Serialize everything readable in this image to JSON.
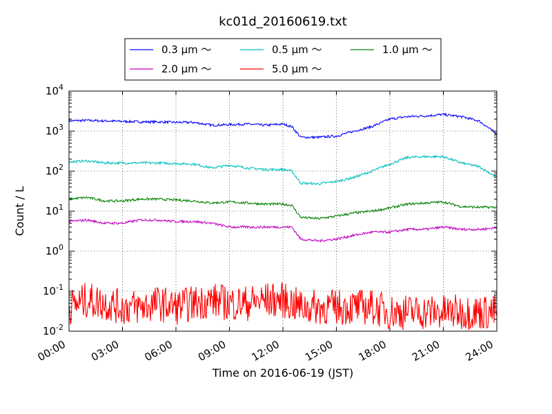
{
  "chart_data": {
    "type": "line",
    "title": "kc01d_20160619.txt",
    "xlabel": "Time on 2016-06-19 (JST)",
    "ylabel": "Count / L",
    "yscale": "log",
    "ylim": [
      0.01,
      10000
    ],
    "xlim": [
      "00:00",
      "24:00"
    ],
    "x_ticks": [
      "00:00",
      "03:00",
      "06:00",
      "09:00",
      "12:00",
      "15:00",
      "18:00",
      "21:00",
      "24:00"
    ],
    "y_ticks": [
      {
        "base": "10",
        "exp": "-2"
      },
      {
        "base": "10",
        "exp": "-1"
      },
      {
        "base": "10",
        "exp": "0"
      },
      {
        "base": "10",
        "exp": "1"
      },
      {
        "base": "10",
        "exp": "2"
      },
      {
        "base": "10",
        "exp": "3"
      },
      {
        "base": "10",
        "exp": "4"
      }
    ],
    "grid": true,
    "legend_position": "top-center",
    "x": [
      "00:00",
      "01:00",
      "02:00",
      "03:00",
      "04:00",
      "05:00",
      "06:00",
      "07:00",
      "08:00",
      "09:00",
      "10:00",
      "11:00",
      "12:00",
      "12:30",
      "13:00",
      "14:00",
      "15:00",
      "16:00",
      "17:00",
      "18:00",
      "19:00",
      "20:00",
      "21:00",
      "22:00",
      "23:00",
      "24:00"
    ],
    "series": [
      {
        "name": "0.3 μm ～",
        "color": "#0000ff",
        "values": [
          1800,
          1850,
          1800,
          1750,
          1700,
          1700,
          1650,
          1650,
          1400,
          1450,
          1500,
          1400,
          1500,
          1300,
          700,
          700,
          750,
          1000,
          1300,
          2000,
          2300,
          2400,
          2600,
          2300,
          1800,
          850
        ]
      },
      {
        "name": "0.5 μm ～",
        "color": "#00bfbf",
        "values": [
          170,
          180,
          160,
          160,
          160,
          160,
          155,
          150,
          120,
          140,
          120,
          110,
          110,
          100,
          50,
          48,
          55,
          70,
          100,
          150,
          220,
          230,
          230,
          160,
          130,
          70
        ]
      },
      {
        "name": "1.0 μm ～",
        "color": "#008000",
        "values": [
          20,
          22,
          18,
          18,
          20,
          20,
          19,
          18,
          16,
          17,
          16,
          15,
          15,
          14,
          7,
          6.5,
          7.5,
          9,
          10,
          12,
          15,
          16,
          17,
          13,
          12.5,
          12.5
        ]
      },
      {
        "name": "2.0 μm ～",
        "color": "#bf00bf",
        "values": [
          5.5,
          6,
          5,
          5,
          6,
          6,
          5.5,
          5.5,
          5,
          4,
          4,
          4,
          4,
          4,
          2,
          1.8,
          2,
          2.5,
          3,
          3,
          3.5,
          3.5,
          4,
          3.5,
          3.5,
          3.8
        ]
      },
      {
        "name": "5.0 μm ～",
        "color": "#ff0000",
        "values": [
          0.04,
          0.06,
          0.05,
          0.04,
          0.04,
          0.05,
          0.04,
          0.05,
          0.06,
          0.05,
          0.05,
          0.06,
          0.06,
          0.05,
          0.04,
          0.04,
          0.04,
          0.04,
          0.04,
          0.03,
          0.03,
          0.03,
          0.03,
          0.03,
          0.03,
          0.03
        ]
      }
    ]
  }
}
